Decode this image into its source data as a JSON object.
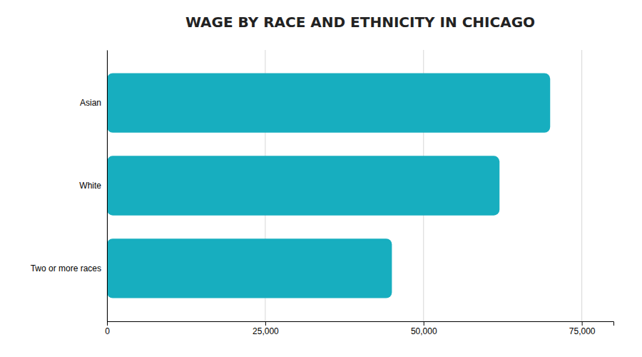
{
  "chart_data": {
    "type": "bar",
    "orientation": "horizontal",
    "title": "WAGE BY RACE AND ETHNICITY IN CHICAGO",
    "categories": [
      "Two or more races",
      "White",
      "Asian"
    ],
    "values": [
      45000,
      62000,
      70000
    ],
    "color": "#17AEBF",
    "xlim": [
      0,
      80000
    ],
    "xticks": [
      0,
      {
        "value": 25000,
        "label": "25,000"
      },
      {
        "value": 50000,
        "label": "50,000"
      },
      {
        "value": 75000,
        "label": "75,000"
      }
    ],
    "grid": true
  }
}
